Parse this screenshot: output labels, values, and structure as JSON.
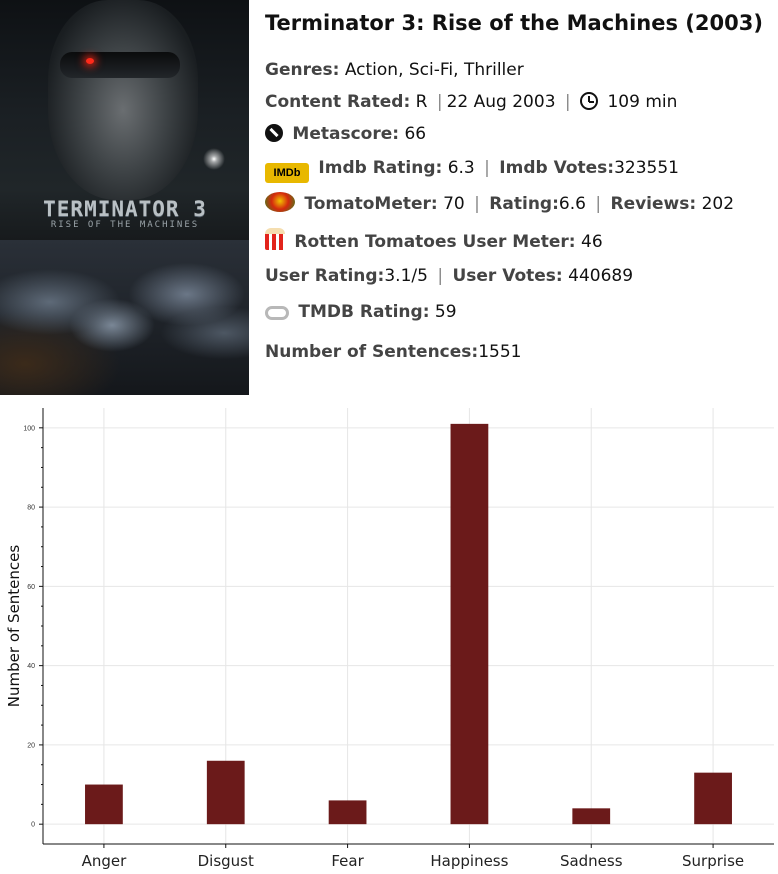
{
  "poster": {
    "title_art": "TERMINATOR 3",
    "subtitle_art": "RISE OF THE MACHINES"
  },
  "movie": {
    "title": "Terminator 3: Rise of the Machines (2003)",
    "genres_label": "Genres:",
    "genres": "Action, Sci-Fi, Thriller",
    "content_rated_label": "Content Rated:",
    "content_rated": "R",
    "release_date": "22 Aug 2003",
    "runtime": "109 min",
    "metascore_label": "Metascore:",
    "metascore": "66",
    "imdb_logo_text": "IMDb",
    "imdb_rating_label": "Imdb Rating:",
    "imdb_rating": "6.3",
    "imdb_votes_label": "Imdb Votes:",
    "imdb_votes": "323551",
    "tomatometer_label": "TomatoMeter:",
    "tomatometer": "70",
    "rating_label": "Rating:",
    "rating": "6.6",
    "reviews_label": "Reviews:",
    "reviews": "202",
    "rt_user_meter_label": "Rotten Tomatoes User Meter:",
    "rt_user_meter": "46",
    "user_rating_label": "User Rating:",
    "user_rating": "3.1/5",
    "user_votes_label": "User Votes:",
    "user_votes": "440689",
    "tmdb_rating_label": "TMDB Rating:",
    "tmdb_rating": "59",
    "num_sentences_label": "Number of Sentences:",
    "num_sentences": "1551",
    "separator": "|"
  },
  "icons": {
    "metascore": "metacritic-icon",
    "imdb": "imdb-logo-icon",
    "tomatometer": "tomato-icon",
    "rt_user_meter": "popcorn-icon",
    "tmdb": "tmdb-icon",
    "runtime": "clock-icon"
  },
  "colors": {
    "bar": "#6b1a1a",
    "grid": "#e6e6e6",
    "axis": "#111111"
  },
  "chart_data": {
    "type": "bar",
    "categories": [
      "Anger",
      "Disgust",
      "Fear",
      "Happiness",
      "Sadness",
      "Surprise"
    ],
    "values": [
      10,
      16,
      6,
      101,
      4,
      13
    ],
    "title": "",
    "xlabel": "",
    "ylabel": "Number of Sentences",
    "ylim": [
      -5,
      105
    ],
    "yticks": [
      0,
      20,
      40,
      60,
      80,
      100
    ],
    "ytick_labels": [
      "0",
      "20",
      "40",
      "60",
      "80",
      "100"
    ],
    "grid": true
  }
}
